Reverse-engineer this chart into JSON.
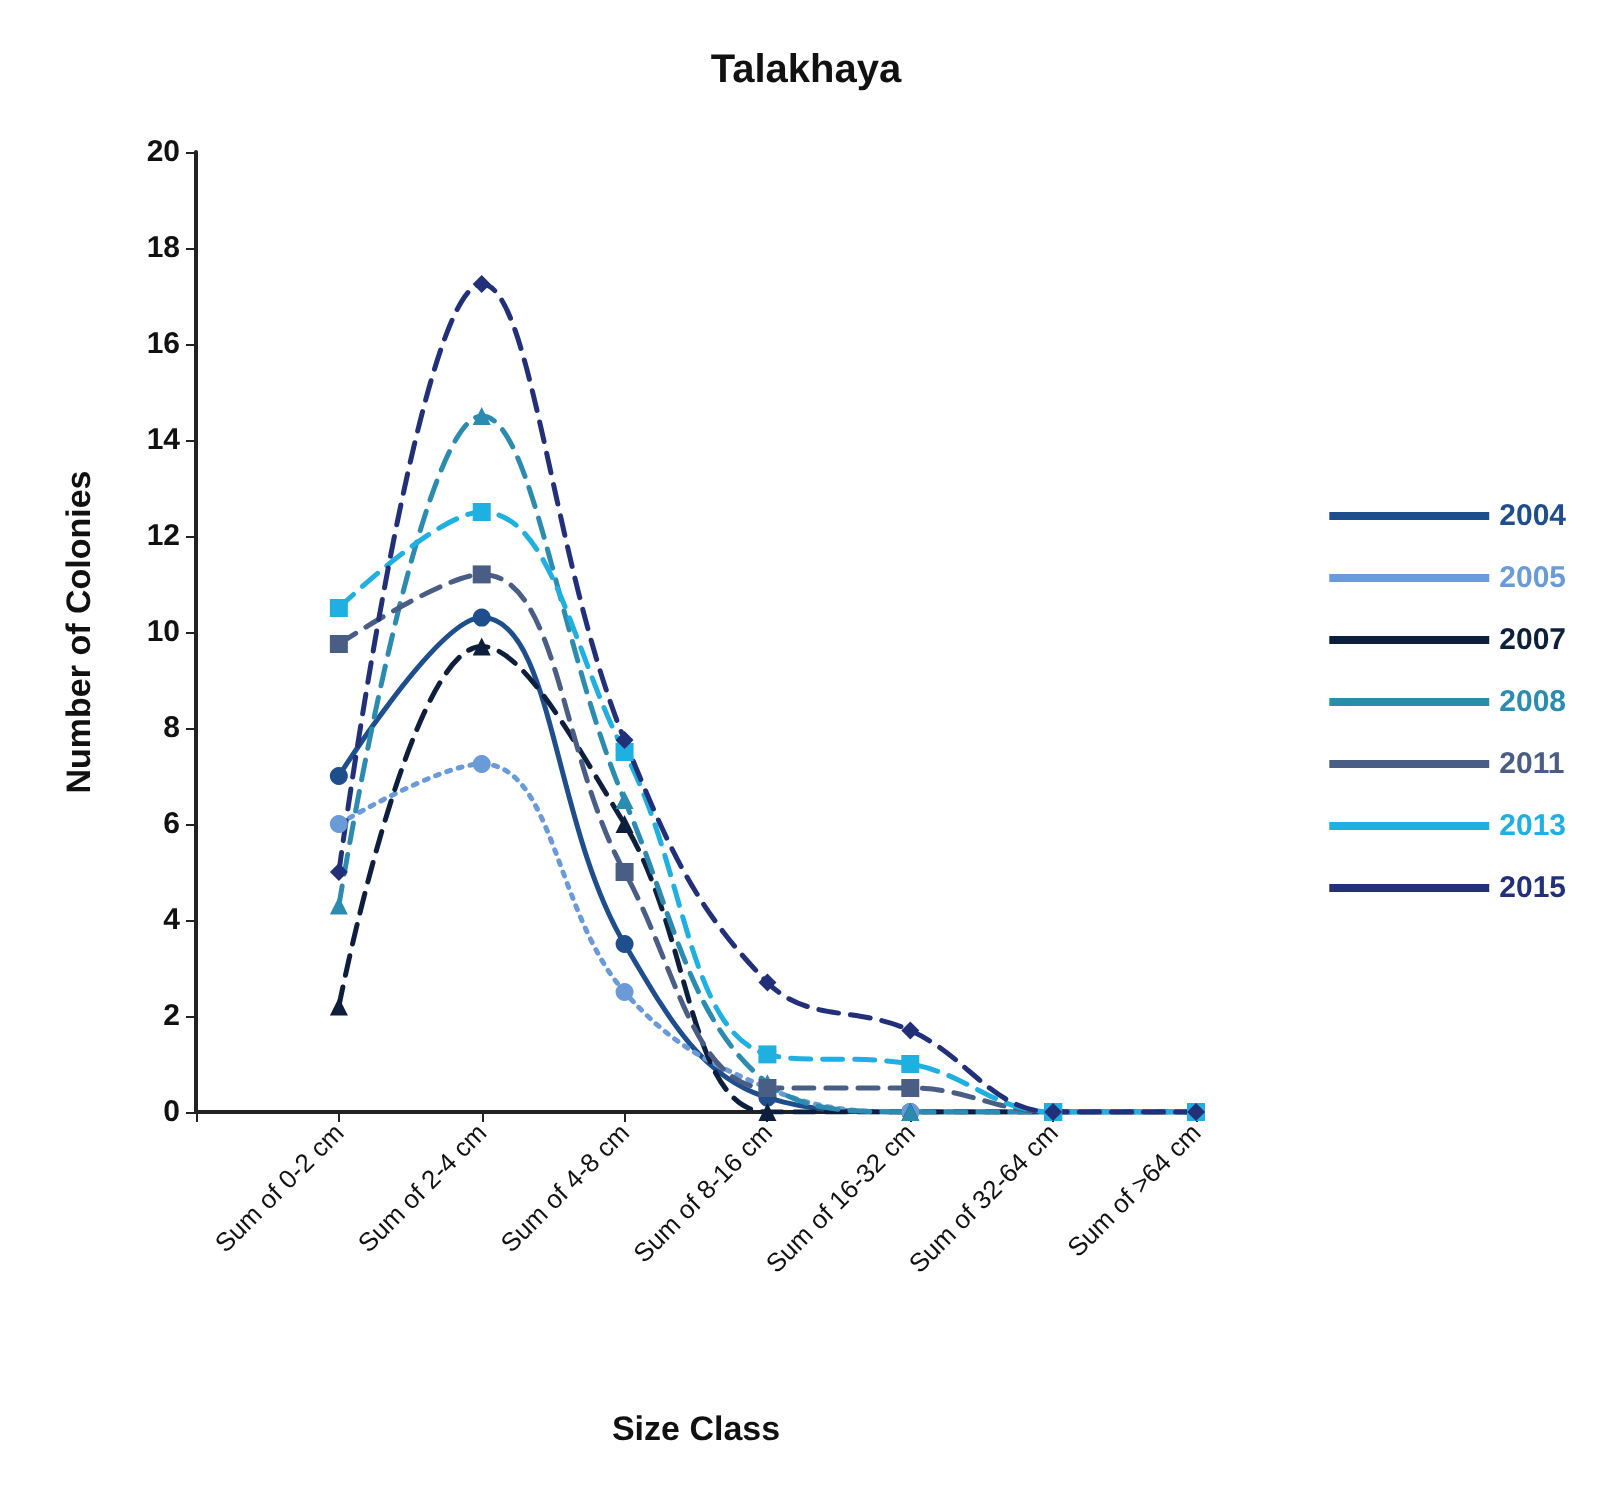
{
  "chart_data": {
    "type": "line",
    "title": "Talakhaya",
    "xlabel": "Size Class",
    "ylabel": "Number of Colonies",
    "categories": [
      "Sum of 0-2 cm",
      "Sum of 2-4 cm",
      "Sum of 4-8 cm",
      "Sum of 8-16 cm",
      "Sum of 16-32 cm",
      "Sum of 32-64 cm",
      "Sum of >64 cm"
    ],
    "ylim": [
      0,
      20
    ],
    "yticks": [
      0,
      2,
      4,
      6,
      8,
      10,
      12,
      14,
      16,
      18,
      20
    ],
    "grid": false,
    "legend": "right",
    "series": [
      {
        "name": "2004",
        "color": "#1f4e8c",
        "marker": "circle",
        "line_style": "solid",
        "values": [
          7,
          10.3,
          3.5,
          0.3,
          0,
          0,
          0
        ]
      },
      {
        "name": "2005",
        "color": "#6a9bd8",
        "marker": "circle",
        "line_style": "dotted",
        "values": [
          6,
          7.25,
          2.5,
          0.5,
          0,
          0,
          0
        ]
      },
      {
        "name": "2007",
        "color": "#0d1f3c",
        "marker": "triangle",
        "line_style": "dashed",
        "values": [
          2.2,
          9.7,
          6,
          0,
          0,
          0,
          0
        ]
      },
      {
        "name": "2008",
        "color": "#2c8cb0",
        "marker": "triangle",
        "line_style": "dashed",
        "values": [
          4.3,
          14.5,
          6.5,
          0.6,
          0,
          0,
          0
        ]
      },
      {
        "name": "2011",
        "color": "#4a5d85",
        "marker": "square",
        "line_style": "dashed",
        "values": [
          9.75,
          11.2,
          5,
          0.5,
          0.5,
          0,
          0
        ]
      },
      {
        "name": "2013",
        "color": "#1eb0e0",
        "marker": "square",
        "line_style": "dashed",
        "values": [
          10.5,
          12.5,
          7.5,
          1.2,
          1,
          0,
          0
        ]
      },
      {
        "name": "2015",
        "color": "#22307a",
        "marker": "diamond",
        "line_style": "dashed",
        "values": [
          5,
          17.25,
          7.75,
          2.7,
          1.7,
          0,
          0
        ]
      }
    ]
  }
}
